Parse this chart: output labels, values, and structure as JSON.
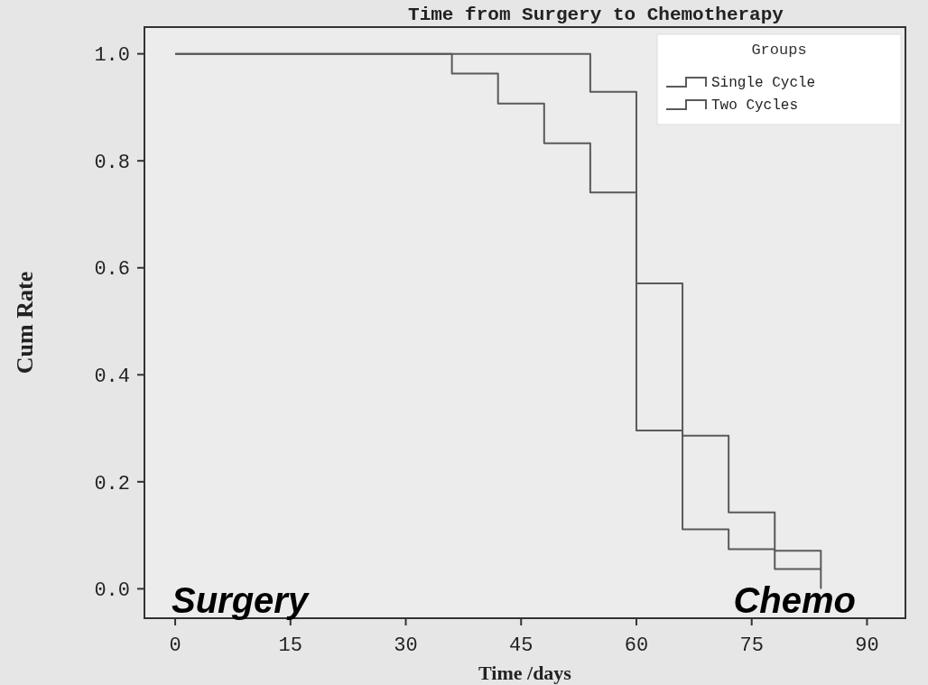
{
  "chart_data": {
    "type": "step",
    "title": "Time from Surgery to Chemotherapy",
    "xlabel": "Time /days",
    "ylabel": "Cum Rate",
    "legend_title": "Groups",
    "legend": "top right",
    "grid": false,
    "marker": "none",
    "line_style": "solid",
    "xlim": [
      -4,
      95
    ],
    "xticks": [
      0,
      15,
      30,
      45,
      60,
      75,
      90
    ],
    "ylim": [
      -0.055,
      1.05
    ],
    "yticks": [
      {
        "value": 0,
        "label": "0.0"
      },
      {
        "value": 0.2,
        "label": "0.2"
      },
      {
        "value": 0.4,
        "label": "0.4"
      },
      {
        "value": 0.6,
        "label": "0.6"
      },
      {
        "value": 0.8,
        "label": "0.8"
      },
      {
        "value": 1,
        "label": "1.0"
      }
    ],
    "series": [
      {
        "name": "Single Cycle",
        "color": "#5a5a5a",
        "x": [
          0,
          36,
          42,
          48,
          54,
          60,
          66,
          72,
          78,
          84
        ],
        "values": [
          1,
          0.963,
          0.907,
          0.833,
          0.741,
          0.296,
          0.111,
          0.074,
          0.037,
          0.037
        ]
      },
      {
        "name": "Two Cycles",
        "color": "#5a5a5a",
        "x": [
          0,
          54,
          60,
          66,
          72,
          78,
          84
        ],
        "values": [
          1,
          0.929,
          0.571,
          0.286,
          0.143,
          0.071,
          0
        ]
      }
    ],
    "annotations": [
      "Surgery",
      "Chemo"
    ]
  }
}
